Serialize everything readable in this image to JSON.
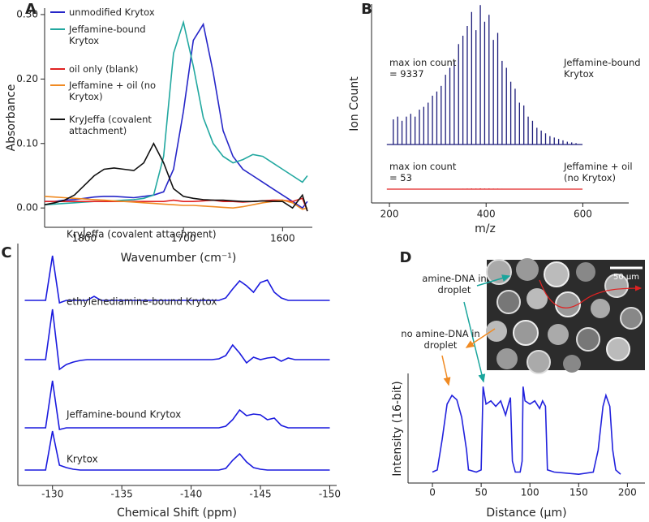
{
  "chart_data": [
    {
      "type": "line",
      "panel_label": "A",
      "x_label": "Wavenumber (cm⁻¹)",
      "y_label": "Absorbance",
      "x": [
        1840,
        1830,
        1820,
        1810,
        1800,
        1790,
        1780,
        1770,
        1760,
        1750,
        1740,
        1730,
        1720,
        1710,
        1700,
        1690,
        1680,
        1670,
        1660,
        1650,
        1640,
        1630,
        1620,
        1610,
        1600,
        1590,
        1580,
        1575
      ],
      "series": [
        {
          "name": "unmodified Krytox",
          "color": "#2626c8",
          "values": [
            0.01,
            0.01,
            0.012,
            0.013,
            0.015,
            0.017,
            0.018,
            0.018,
            0.017,
            0.016,
            0.018,
            0.02,
            0.025,
            0.06,
            0.15,
            0.26,
            0.285,
            0.21,
            0.12,
            0.08,
            0.06,
            0.05,
            0.04,
            0.03,
            0.02,
            0.01,
            0.0,
            0.01
          ]
        },
        {
          "name": "Jeffamine-bound Krytox",
          "color": "#22a8a0",
          "values": [
            0.005,
            0.006,
            0.007,
            0.008,
            0.009,
            0.01,
            0.01,
            0.011,
            0.012,
            0.013,
            0.015,
            0.02,
            0.08,
            0.24,
            0.288,
            0.22,
            0.14,
            0.1,
            0.08,
            0.07,
            0.075,
            0.083,
            0.08,
            0.07,
            0.06,
            0.05,
            0.04,
            0.05
          ]
        },
        {
          "name": "oil only (blank)",
          "color": "#e02222",
          "values": [
            0.01,
            0.01,
            0.01,
            0.01,
            0.01,
            0.01,
            0.01,
            0.01,
            0.01,
            0.01,
            0.01,
            0.01,
            0.01,
            0.012,
            0.01,
            0.01,
            0.011,
            0.012,
            0.01,
            0.01,
            0.009,
            0.01,
            0.011,
            0.012,
            0.012,
            0.01,
            0.015,
            -0.005
          ]
        },
        {
          "name": "Jeffamine + oil (no Krytox)",
          "color": "#f08a22",
          "values": [
            0.018,
            0.017,
            0.016,
            0.015,
            0.014,
            0.013,
            0.012,
            0.011,
            0.01,
            0.009,
            0.008,
            0.007,
            0.006,
            0.005,
            0.004,
            0.004,
            0.003,
            0.002,
            0.001,
            0.0,
            0.002,
            0.005,
            0.008,
            0.01,
            0.012,
            0.008,
            -0.002,
            0.0
          ]
        },
        {
          "name": "KryJeffa (covalent attachment)",
          "color": "#111111",
          "values": [
            0.005,
            0.008,
            0.012,
            0.02,
            0.035,
            0.05,
            0.06,
            0.062,
            0.06,
            0.058,
            0.07,
            0.1,
            0.07,
            0.03,
            0.018,
            0.015,
            0.013,
            0.012,
            0.012,
            0.011,
            0.01,
            0.01,
            0.011,
            0.01,
            0.01,
            0.0,
            0.02,
            -0.005
          ]
        }
      ],
      "xlim": [
        1840,
        1570
      ],
      "ylim": [
        -0.03,
        0.31
      ],
      "xticks": [
        1800,
        1700,
        1600
      ],
      "yticks": [
        {
          "value": 0,
          "label": "0.00"
        },
        {
          "value": 0.1,
          "label": "0.10"
        },
        {
          "value": 0.2,
          "label": "0.20"
        },
        {
          "value": 0.3,
          "label": "0.30"
        }
      ],
      "legend": "upper left"
    },
    {
      "type": "stem",
      "panel_label": "B",
      "x_label": "m/z",
      "y_label": "Ion Count",
      "x": [
        208,
        217,
        226,
        235,
        244,
        253,
        262,
        271,
        280,
        289,
        298,
        307,
        316,
        325,
        334,
        343,
        352,
        361,
        370,
        379,
        388,
        397,
        406,
        415,
        424,
        433,
        442,
        451,
        460,
        469,
        478,
        487,
        496,
        505,
        514,
        523,
        532,
        541,
        550,
        559,
        568,
        577,
        586
      ],
      "series": [
        {
          "name": "Jeffamine-bound Krytox",
          "color": "#1c1c7a",
          "annotation": "max ion count = 9337",
          "values": [
            1681,
            1867,
            1587,
            1867,
            2054,
            1867,
            2334,
            2521,
            2801,
            3268,
            3548,
            3922,
            4669,
            5135,
            5602,
            6723,
            7283,
            7936,
            8870,
            7656,
            9337,
            8217,
            8683,
            7003,
            7470,
            5602,
            5135,
            4202,
            3735,
            2801,
            2614,
            1867,
            1587,
            1120,
            934,
            747,
            560,
            467,
            373,
            280,
            187,
            140,
            93
          ]
        },
        {
          "name": "Jeffamine + oil (no Krytox)",
          "color": "#e02222",
          "annotation": "max ion count = 53",
          "values": [
            5,
            4,
            6,
            5,
            7,
            6,
            8,
            9,
            10,
            12,
            14,
            15,
            18,
            20,
            24,
            28,
            32,
            38,
            45,
            40,
            53,
            42,
            46,
            36,
            38,
            30,
            26,
            22,
            18,
            15,
            12,
            10,
            8,
            7,
            6,
            5,
            4,
            4,
            3,
            3,
            2,
            2,
            2
          ]
        }
      ],
      "xlim": [
        163,
        695
      ],
      "ylim": [
        0,
        10000
      ],
      "xticks": [
        200,
        400,
        600
      ]
    },
    {
      "type": "spectra",
      "panel_label": "C",
      "x_label": "Chemical Shift (ppm)",
      "x": [
        -128,
        -128.5,
        -129,
        -129.5,
        -130,
        -130.5,
        -131,
        -131.5,
        -132,
        -132.5,
        -133,
        -133.5,
        -134,
        -134.5,
        -135,
        -135.5,
        -136,
        -136.5,
        -137,
        -137.5,
        -138,
        -138.5,
        -139,
        -139.5,
        -140,
        -140.5,
        -141,
        -141.5,
        -142,
        -142.5,
        -143,
        -143.5,
        -144,
        -144.5,
        -145,
        -145.5,
        -146,
        -146.5,
        -147,
        -147.5,
        -148,
        -148.5,
        -149,
        -149.5,
        -150
      ],
      "series": [
        {
          "name": "KryJeffa (covalent attachment)",
          "color": "#1a1ade",
          "values": [
            0,
            0,
            0,
            0,
            55,
            -3,
            0,
            0,
            0,
            0,
            5,
            0,
            0,
            0,
            0,
            0,
            0,
            0,
            0,
            0,
            0,
            0,
            0,
            0,
            0,
            0,
            0,
            0,
            0,
            3,
            14,
            24,
            18,
            10,
            22,
            25,
            10,
            3,
            0,
            0,
            0,
            0,
            0,
            0,
            0
          ]
        },
        {
          "name": "ethylenediamine-bound Krytox",
          "color": "#1a1ade",
          "values": [
            0,
            0,
            0,
            0,
            62,
            -12,
            -6,
            -3,
            -1,
            0,
            0,
            0,
            0,
            0,
            0,
            0,
            0,
            0,
            0,
            0,
            0,
            0,
            0,
            0,
            0,
            0,
            0,
            0,
            1,
            5,
            18,
            8,
            -4,
            3,
            0,
            2,
            3,
            -2,
            2,
            0,
            0,
            0,
            0,
            0,
            0
          ]
        },
        {
          "name": "Jeffamine-bound Krytox",
          "color": "#1a1ade",
          "values": [
            0,
            0,
            0,
            0,
            58,
            -2,
            0,
            0,
            0,
            0,
            0,
            0,
            0,
            0,
            0,
            0,
            0,
            0,
            0,
            0,
            0,
            0,
            0,
            0,
            0,
            0,
            0,
            0,
            0,
            2,
            10,
            22,
            15,
            17,
            16,
            10,
            12,
            3,
            0,
            0,
            0,
            0,
            0,
            0,
            0
          ]
        },
        {
          "name": "Krytox",
          "color": "#1a1ade",
          "values": [
            0,
            0,
            0,
            0,
            48,
            6,
            3,
            1,
            0,
            0,
            0,
            0,
            0,
            0,
            0,
            0,
            0,
            0,
            0,
            0,
            0,
            0,
            0,
            0,
            0,
            0,
            0,
            0,
            0,
            2,
            12,
            20,
            10,
            3,
            1,
            0,
            0,
            0,
            0,
            0,
            0,
            0,
            0,
            0,
            0
          ]
        }
      ],
      "xlim": [
        -127.5,
        -150.5
      ],
      "xticks": [
        -130,
        -135,
        -140,
        -145,
        -150
      ]
    },
    {
      "type": "line",
      "panel_label": "D",
      "x_label": "Distance (μm)",
      "y_label": "Intensity (16-bit)",
      "x": [
        0,
        5,
        10,
        15,
        20,
        25,
        30,
        35,
        37,
        45,
        50,
        52,
        55,
        60,
        65,
        70,
        75,
        78,
        80,
        82,
        85,
        90,
        92,
        93,
        95,
        100,
        105,
        110,
        113,
        116,
        118,
        125,
        150,
        165,
        170,
        175,
        178,
        182,
        185,
        188,
        193
      ],
      "series": [
        {
          "color": "#2222dd",
          "values": [
            10,
            12,
            40,
            72,
            80,
            76,
            60,
            30,
            12,
            10,
            12,
            88,
            72,
            75,
            70,
            75,
            62,
            72,
            78,
            20,
            10,
            10,
            20,
            88,
            75,
            72,
            75,
            68,
            75,
            70,
            12,
            10,
            8,
            10,
            30,
            70,
            80,
            70,
            30,
            12,
            8
          ]
        }
      ],
      "xlim": [
        -25,
        218
      ],
      "ylim": [
        0,
        100
      ],
      "xticks": [
        0,
        50,
        100,
        150,
        200
      ],
      "annotations": [
        "amine-DNA in droplet",
        "no amine-DNA in droplet"
      ],
      "scale_bar": "50 μm"
    }
  ]
}
